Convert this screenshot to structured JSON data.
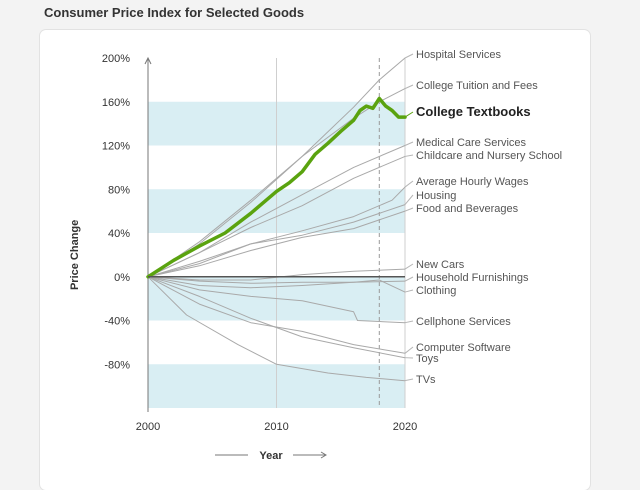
{
  "page": {
    "title": "Consumer Price Index for Selected Goods"
  },
  "colors": {
    "band": "#d9eef3",
    "line": "#a9a9a9",
    "highlight": "#5aa30f",
    "zero": "#555555",
    "grid": "#cfcfcf"
  },
  "chart_data": {
    "type": "line",
    "title": "",
    "xlabel": "Year",
    "ylabel": "Price Change",
    "xlim": [
      2000,
      2020
    ],
    "ylim": [
      -120,
      200
    ],
    "xticks": [
      2000,
      2010,
      2020
    ],
    "yticks": [
      200,
      160,
      120,
      80,
      40,
      0,
      -40,
      -80
    ],
    "ytick_labels": [
      "200%",
      "160%",
      "120%",
      "80%",
      "40%",
      "0%",
      "-40%",
      "-80%"
    ],
    "bands": [
      [
        120,
        160
      ],
      [
        40,
        80
      ],
      [
        -40,
        0
      ],
      [
        -120,
        -80
      ]
    ],
    "reference_line_x": 2018,
    "highlight_series": "College Textbooks",
    "series": [
      {
        "name": "Hospital Services",
        "x": [
          2000,
          2004,
          2008,
          2012,
          2016,
          2018,
          2020
        ],
        "values": [
          0,
          30,
          68,
          110,
          155,
          180,
          200
        ]
      },
      {
        "name": "College Tuition and Fees",
        "x": [
          2000,
          2004,
          2008,
          2012,
          2016,
          2018,
          2020
        ],
        "values": [
          0,
          32,
          70,
          110,
          145,
          160,
          172
        ]
      },
      {
        "name": "College Textbooks",
        "x": [
          2000,
          2002,
          2004,
          2006,
          2008,
          2010,
          2011,
          2012,
          2013,
          2014,
          2015,
          2016,
          2016.5,
          2017,
          2017.5,
          2018,
          2018.5,
          2019,
          2019.5,
          2020
        ],
        "values": [
          0,
          15,
          28,
          40,
          58,
          78,
          86,
          96,
          112,
          122,
          133,
          143,
          152,
          156,
          154,
          163,
          156,
          152,
          146,
          146
        ]
      },
      {
        "name": "Medical Care Services",
        "x": [
          2000,
          2004,
          2008,
          2012,
          2016,
          2020
        ],
        "values": [
          0,
          22,
          50,
          75,
          100,
          120
        ]
      },
      {
        "name": "Childcare and Nursery School",
        "x": [
          2000,
          2004,
          2008,
          2012,
          2016,
          2020
        ],
        "values": [
          0,
          22,
          45,
          65,
          90,
          110
        ]
      },
      {
        "name": "Average Hourly Wages",
        "x": [
          2000,
          2004,
          2008,
          2012,
          2016,
          2019,
          2020
        ],
        "values": [
          0,
          14,
          30,
          42,
          55,
          70,
          82
        ]
      },
      {
        "name": "Housing",
        "x": [
          2000,
          2004,
          2008,
          2012,
          2016,
          2020
        ],
        "values": [
          0,
          12,
          30,
          38,
          50,
          66
        ]
      },
      {
        "name": "Food and Beverages",
        "x": [
          2000,
          2004,
          2008,
          2012,
          2016,
          2020
        ],
        "values": [
          0,
          10,
          24,
          36,
          44,
          60
        ]
      },
      {
        "name": "New Cars",
        "x": [
          2000,
          2004,
          2008,
          2012,
          2016,
          2020
        ],
        "values": [
          0,
          -3,
          -3,
          2,
          5,
          7
        ]
      },
      {
        "name": "Household Furnishings",
        "x": [
          2000,
          2004,
          2008,
          2012,
          2016,
          2020
        ],
        "values": [
          0,
          -4,
          -6,
          -5,
          -5,
          -4
        ]
      },
      {
        "name": "Clothing",
        "x": [
          2000,
          2004,
          2008,
          2012,
          2016,
          2018,
          2020
        ],
        "values": [
          0,
          -8,
          -10,
          -8,
          -5,
          -3,
          -14
        ]
      },
      {
        "name": "Cellphone Services",
        "x": [
          2000,
          2004,
          2008,
          2012,
          2016,
          2016.3,
          2020
        ],
        "values": [
          0,
          -12,
          -18,
          -22,
          -32,
          -40,
          -42
        ]
      },
      {
        "name": "Computer Software",
        "x": [
          2000,
          2004,
          2008,
          2012,
          2016,
          2020
        ],
        "values": [
          0,
          -25,
          -42,
          -50,
          -62,
          -70
        ]
      },
      {
        "name": "Toys",
        "x": [
          2000,
          2004,
          2008,
          2012,
          2016,
          2020
        ],
        "values": [
          0,
          -18,
          -38,
          -55,
          -65,
          -74
        ]
      },
      {
        "name": "TVs",
        "x": [
          2000,
          2003,
          2007,
          2010,
          2014,
          2017,
          2020
        ],
        "values": [
          0,
          -35,
          -62,
          -80,
          -88,
          -92,
          -95
        ]
      }
    ]
  }
}
